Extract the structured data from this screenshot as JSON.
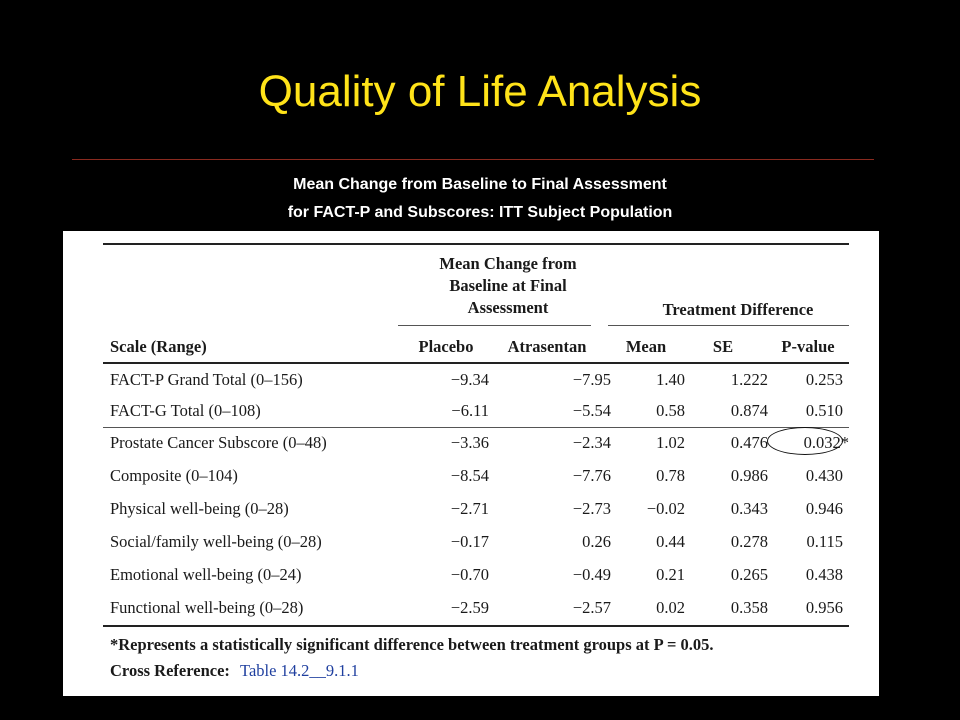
{
  "slide": {
    "title": "Quality of Life Analysis",
    "subtitle_line1": "Mean Change from Baseline to Final Assessment",
    "subtitle_line2": "for FACT-P and Subscores: ITT Subject Population"
  },
  "table": {
    "group_header_mean_change": "Mean Change from Baseline at Final Assessment",
    "group_header_mean_change_lines": [
      "Mean Change from",
      "Baseline at Final",
      "Assessment"
    ],
    "group_header_treatment_difference": "Treatment Difference",
    "columns": {
      "scale": "Scale (Range)",
      "placebo": "Placebo",
      "atrasentan": "Atrasentan",
      "mean": "Mean",
      "se": "SE",
      "pvalue": "P-value"
    },
    "rows": [
      {
        "scale": "FACT-P Grand Total (0–156)",
        "placebo": "−9.34",
        "atrasentan": "−7.95",
        "mean": "1.40",
        "se": "1.222",
        "pvalue": "0.253"
      },
      {
        "scale": "FACT-G Total (0–108)",
        "placebo": "−6.11",
        "atrasentan": "−5.54",
        "mean": "0.58",
        "se": "0.874",
        "pvalue": "0.510"
      },
      {
        "scale": "Prostate Cancer Subscore (0–48)",
        "placebo": "−3.36",
        "atrasentan": "−2.34",
        "mean": "1.02",
        "se": "0.476",
        "pvalue": "0.032*"
      },
      {
        "scale": "Composite (0–104)",
        "placebo": "−8.54",
        "atrasentan": "−7.76",
        "mean": "0.78",
        "se": "0.986",
        "pvalue": "0.430"
      },
      {
        "scale": "Physical well-being (0–28)",
        "placebo": "−2.71",
        "atrasentan": "−2.73",
        "mean": "−0.02",
        "se": "0.343",
        "pvalue": "0.946"
      },
      {
        "scale": "Social/family well-being (0–28)",
        "placebo": "−0.17",
        "atrasentan": "0.26",
        "mean": "0.44",
        "se": "0.278",
        "pvalue": "0.115"
      },
      {
        "scale": "Emotional well-being (0–24)",
        "placebo": "−0.70",
        "atrasentan": "−0.49",
        "mean": "0.21",
        "se": "0.265",
        "pvalue": "0.438"
      },
      {
        "scale": "Functional well-being (0–28)",
        "placebo": "−2.59",
        "atrasentan": "−2.57",
        "mean": "0.02",
        "se": "0.358",
        "pvalue": "0.956"
      }
    ],
    "footnote": "*Represents a statistically significant difference between treatment groups at P = 0.05.",
    "cross_reference_label": "Cross Reference:",
    "cross_reference_link": "Table 14.2__9.1.1"
  },
  "colors": {
    "background": "#000000",
    "title": "#FFE319",
    "subtitle": "#FFFFFF",
    "rule": "#8A2A1F",
    "link": "#1F3F9F"
  }
}
